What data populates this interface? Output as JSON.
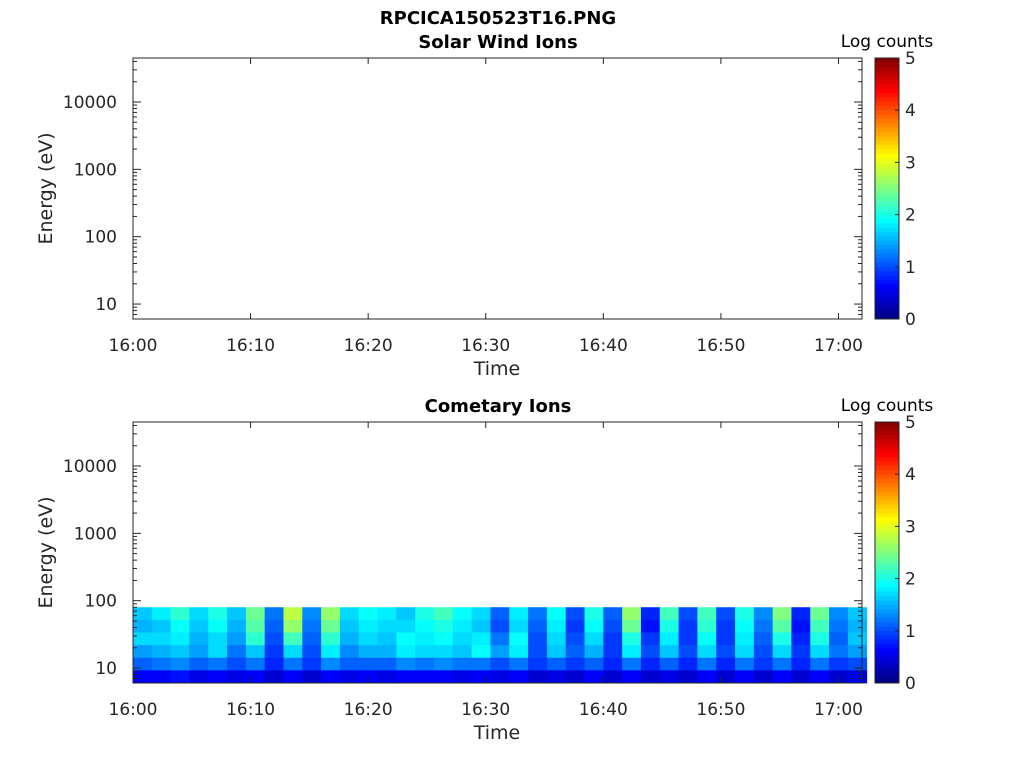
{
  "figure": {
    "title": "RPCICA150523T16.PNG"
  },
  "chart_data": [
    {
      "type": "heatmap",
      "title": "Solar Wind Ions",
      "xlabel": "Time",
      "ylabel": "Energy (eV)",
      "x_tick_labels": [
        "16:00",
        "16:10",
        "16:20",
        "16:30",
        "16:40",
        "16:50",
        "17:00"
      ],
      "y_tick_labels": [
        "10",
        "100",
        "1000",
        "10000"
      ],
      "y_scale": "log",
      "xlim_minutes_after_1600": [
        0,
        62
      ],
      "ylim": [
        6,
        45000
      ],
      "colorbar": {
        "title": "Log counts",
        "ticks": [
          "0",
          "1",
          "2",
          "3",
          "4",
          "5"
        ],
        "range": [
          0,
          5
        ],
        "colormap": "jet"
      },
      "grid": false,
      "data": "empty"
    },
    {
      "type": "heatmap",
      "title": "Cometary Ions",
      "xlabel": "Time",
      "ylabel": "Energy (eV)",
      "x_tick_labels": [
        "16:00",
        "16:10",
        "16:20",
        "16:30",
        "16:40",
        "16:50",
        "17:00"
      ],
      "y_tick_labels": [
        "10",
        "100",
        "1000",
        "10000"
      ],
      "y_scale": "log",
      "xlim_minutes_after_1600": [
        0,
        62
      ],
      "ylim": [
        6,
        45000
      ],
      "colorbar": {
        "title": "Log counts",
        "ticks": [
          "0",
          "1",
          "2",
          "3",
          "4",
          "5"
        ],
        "range": [
          0,
          5
        ],
        "colormap": "jet"
      },
      "grid": false,
      "energy_range_eV": [
        6,
        80
      ],
      "column_times_min": [
        0.8,
        2.4,
        4.0,
        5.6,
        7.2,
        8.8,
        10.4,
        12.0,
        13.6,
        15.2,
        16.8,
        18.4,
        20.0,
        21.6,
        23.2,
        24.8,
        26.4,
        28.0,
        29.6,
        31.2,
        32.8,
        34.4,
        36.0,
        37.6,
        39.2,
        40.8,
        42.4,
        44.0,
        45.6,
        47.2,
        48.8,
        50.4,
        52.0,
        53.6,
        55.2,
        56.8,
        58.4,
        60.0,
        61.6
      ],
      "column_band_log_counts": [
        [
          1.6,
          1.5,
          1.7,
          1.4,
          1.1,
          0.6
        ],
        [
          1.8,
          1.6,
          1.7,
          1.5,
          1.2,
          0.6
        ],
        [
          2.1,
          1.9,
          1.8,
          1.6,
          1.3,
          0.7
        ],
        [
          1.7,
          1.6,
          1.5,
          1.4,
          1.1,
          0.5
        ],
        [
          2.0,
          1.9,
          1.7,
          1.7,
          1.2,
          0.6
        ],
        [
          1.6,
          1.5,
          1.4,
          1.2,
          1.0,
          0.5
        ],
        [
          2.4,
          2.3,
          2.1,
          1.6,
          1.2,
          0.6
        ],
        [
          1.2,
          1.1,
          1.0,
          0.9,
          0.8,
          0.4
        ],
        [
          2.8,
          2.6,
          2.2,
          1.7,
          1.2,
          0.6
        ],
        [
          1.3,
          1.2,
          1.1,
          1.0,
          0.9,
          0.4
        ],
        [
          2.6,
          2.4,
          2.1,
          1.8,
          1.3,
          0.6
        ],
        [
          1.7,
          1.6,
          1.5,
          1.3,
          1.1,
          0.5
        ],
        [
          1.9,
          1.8,
          1.7,
          1.5,
          1.1,
          0.6
        ],
        [
          1.8,
          1.7,
          1.6,
          1.5,
          1.1,
          0.5
        ],
        [
          1.6,
          1.7,
          1.9,
          1.8,
          1.3,
          0.6
        ],
        [
          2.0,
          1.9,
          1.8,
          1.7,
          1.2,
          0.6
        ],
        [
          2.2,
          2.0,
          1.9,
          1.7,
          1.3,
          0.6
        ],
        [
          1.9,
          1.8,
          1.7,
          1.6,
          1.2,
          0.5
        ],
        [
          1.7,
          1.6,
          1.8,
          1.9,
          1.2,
          0.6
        ],
        [
          1.1,
          1.0,
          1.2,
          1.4,
          1.0,
          0.5
        ],
        [
          1.8,
          1.7,
          1.9,
          1.8,
          1.2,
          0.6
        ],
        [
          1.2,
          1.1,
          1.0,
          1.0,
          0.9,
          0.4
        ],
        [
          1.9,
          1.8,
          1.7,
          1.6,
          1.1,
          0.5
        ],
        [
          1.0,
          0.9,
          1.0,
          1.1,
          0.9,
          0.4
        ],
        [
          2.0,
          1.9,
          1.7,
          1.5,
          1.1,
          0.6
        ],
        [
          1.1,
          1.0,
          0.9,
          0.9,
          0.8,
          0.4
        ],
        [
          2.6,
          2.4,
          2.0,
          1.8,
          1.2,
          0.6
        ],
        [
          0.8,
          0.7,
          0.9,
          1.0,
          0.8,
          0.4
        ],
        [
          2.2,
          2.0,
          1.8,
          1.6,
          1.1,
          0.5
        ],
        [
          1.0,
          0.9,
          0.9,
          1.0,
          0.8,
          0.4
        ],
        [
          2.2,
          2.1,
          1.9,
          1.7,
          1.2,
          0.6
        ],
        [
          1.0,
          0.9,
          0.9,
          1.0,
          0.8,
          0.4
        ],
        [
          2.0,
          1.9,
          1.8,
          1.7,
          1.2,
          0.6
        ],
        [
          1.3,
          1.2,
          1.1,
          1.0,
          0.9,
          0.4
        ],
        [
          2.5,
          2.3,
          2.0,
          1.7,
          1.2,
          0.6
        ],
        [
          0.8,
          0.7,
          0.8,
          0.9,
          0.8,
          0.4
        ],
        [
          2.4,
          2.2,
          2.0,
          1.7,
          1.2,
          0.6
        ],
        [
          1.3,
          1.2,
          1.1,
          1.2,
          0.9,
          0.4
        ],
        [
          1.6,
          1.5,
          1.6,
          1.4,
          1.0,
          0.5
        ]
      ]
    }
  ]
}
